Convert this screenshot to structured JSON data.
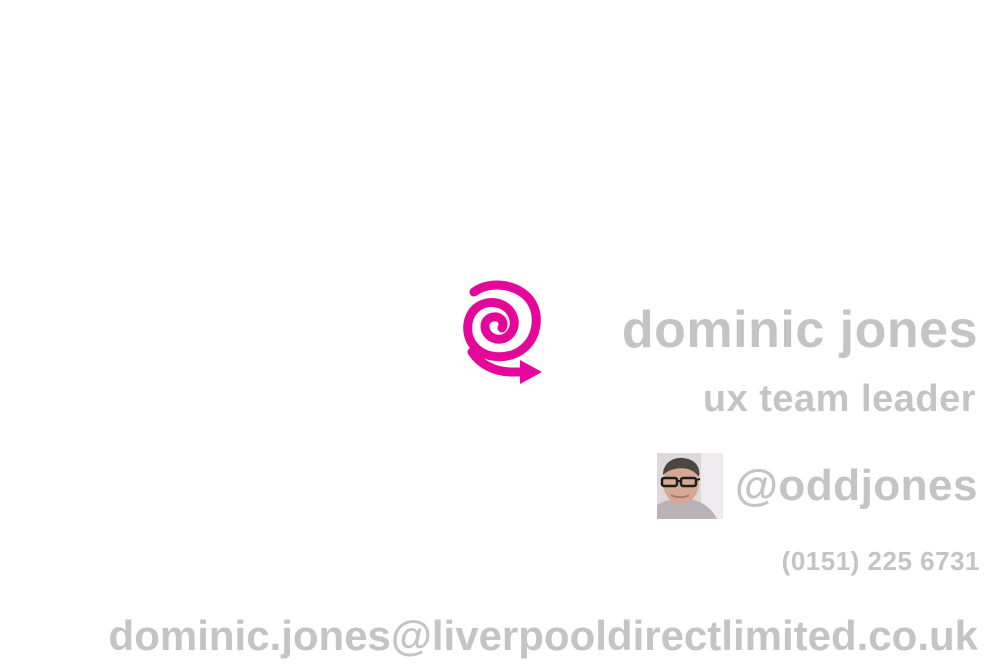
{
  "card": {
    "name": "dominic jones",
    "role": "ux team leader",
    "twitter_handle": "@oddjones",
    "phone": "(0151) 225 6731",
    "email": "dominic.jones@liverpooldirectlimited.co.uk"
  },
  "icons": {
    "logo": "spiral-arrow-logo-icon",
    "avatar": "profile-photo"
  },
  "colors": {
    "text": "#c4c4c4",
    "logo": "#e5079a",
    "background": "#ffffff"
  }
}
